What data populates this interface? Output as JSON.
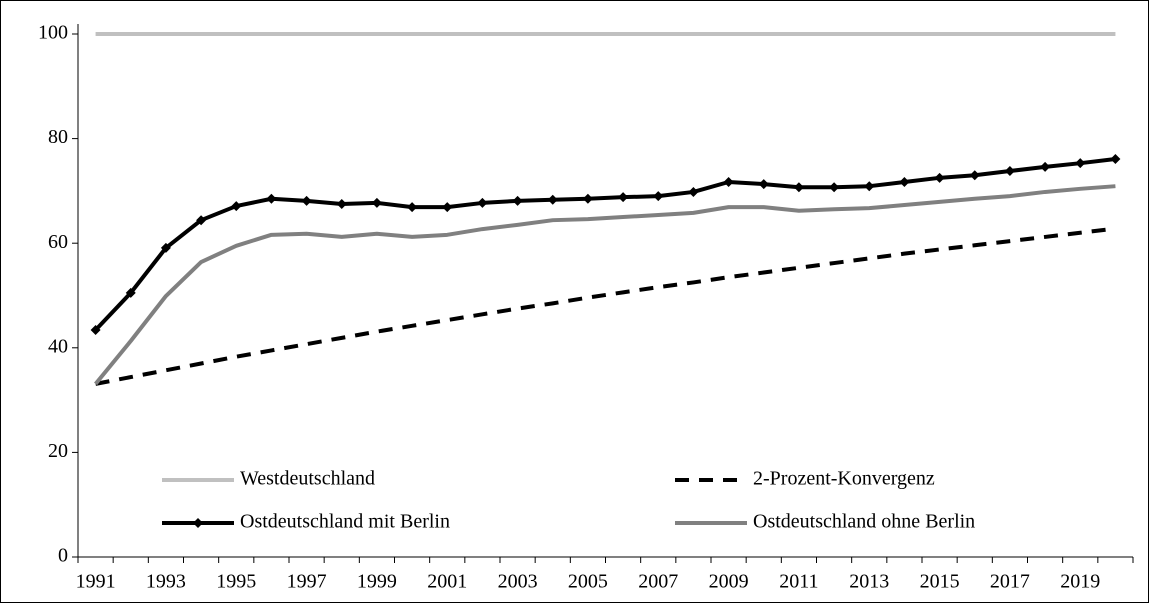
{
  "chart_data": {
    "type": "line",
    "categories": [
      "1991",
      null,
      "1993",
      null,
      "1995",
      null,
      "1997",
      null,
      "1999",
      null,
      "2001",
      null,
      "2003",
      null,
      "2005",
      null,
      "2007",
      null,
      "2009",
      null,
      "2011",
      null,
      "2013",
      null,
      "2015",
      null,
      "2017",
      null,
      "2019",
      null
    ],
    "ylim": [
      0,
      100
    ],
    "yticks": [
      0,
      20,
      40,
      60,
      80,
      100
    ],
    "grid": false,
    "legend": "bottom",
    "series": [
      {
        "name": "Westdeutschland",
        "color": "#c0c0c0",
        "dash": false,
        "marker": "none",
        "values": [
          100,
          100,
          100,
          100,
          100,
          100,
          100,
          100,
          100,
          100,
          100,
          100,
          100,
          100,
          100,
          100,
          100,
          100,
          100,
          100,
          100,
          100,
          100,
          100,
          100,
          100,
          100,
          100,
          100,
          100
        ]
      },
      {
        "name": "2-Prozent-Konvergenz",
        "color": "#000000",
        "dash": true,
        "marker": "none",
        "values": [
          33.1,
          34.4,
          35.7,
          37.0,
          38.3,
          39.5,
          40.7,
          41.9,
          43.1,
          44.2,
          45.3,
          46.4,
          47.5,
          48.5,
          49.6,
          50.6,
          51.6,
          52.5,
          53.5,
          54.4,
          55.3,
          56.2,
          57.1,
          58.0,
          58.8,
          59.6,
          60.4,
          61.2,
          62.0,
          62.8
        ]
      },
      {
        "name": "Ostdeutschland mit Berlin",
        "color": "#000000",
        "dash": false,
        "marker": "diamond",
        "values": [
          43.4,
          50.5,
          59.1,
          64.4,
          67.1,
          68.5,
          68.1,
          67.5,
          67.7,
          66.9,
          66.9,
          67.7,
          68.1,
          68.3,
          68.5,
          68.8,
          69.0,
          69.8,
          71.7,
          71.3,
          70.7,
          70.7,
          70.9,
          71.7,
          72.5,
          73.0,
          73.8,
          74.6,
          75.3,
          76.1
        ]
      },
      {
        "name": "Ostdeutschland ohne Berlin",
        "color": "#808080",
        "dash": false,
        "marker": "none",
        "values": [
          33.1,
          41.3,
          49.9,
          56.4,
          59.5,
          61.6,
          61.8,
          61.2,
          61.8,
          61.2,
          61.6,
          62.7,
          63.5,
          64.4,
          64.6,
          65.0,
          65.4,
          65.8,
          66.9,
          66.9,
          66.2,
          66.5,
          66.7,
          67.3,
          67.9,
          68.5,
          69.0,
          69.8,
          70.4,
          70.9
        ]
      }
    ]
  }
}
